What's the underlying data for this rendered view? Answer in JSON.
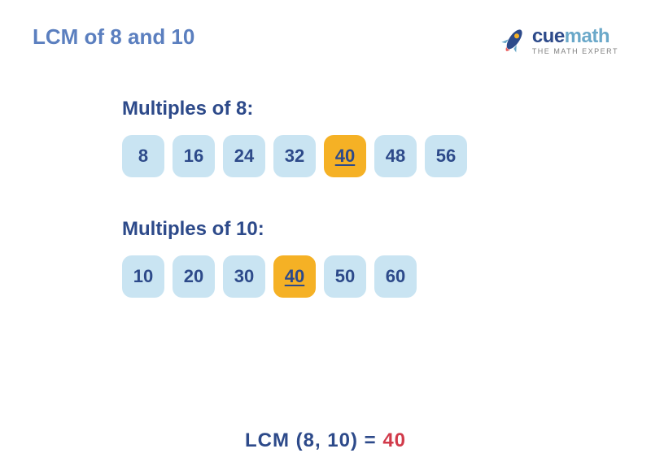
{
  "colors": {
    "title": "#5b7fbf",
    "heading": "#2d4a8a",
    "chip_bg": "#c9e4f2",
    "chip_text": "#2d4a8a",
    "chip_hl_bg": "#f5b125",
    "chip_hl_text": "#2d4a8a",
    "result_label": "#2d4a8a",
    "result_value": "#d13a4a",
    "logo_cue": "#2d4a8a",
    "logo_math": "#6aa8c9",
    "logo_sub": "#808080",
    "rocket_body": "#2d4a8a",
    "rocket_window": "#f5b125",
    "rocket_fin": "#6aa8c9",
    "rocket_flame": "#e85d5d"
  },
  "title": "LCM of 8 and 10",
  "logo": {
    "cue": "cue",
    "math": "math",
    "sub": "THE MATH EXPERT"
  },
  "section1": {
    "heading": "Multiples of 8:",
    "chips": [
      {
        "v": "8",
        "hl": false
      },
      {
        "v": "16",
        "hl": false
      },
      {
        "v": "24",
        "hl": false
      },
      {
        "v": "32",
        "hl": false
      },
      {
        "v": "40",
        "hl": true
      },
      {
        "v": "48",
        "hl": false
      },
      {
        "v": "56",
        "hl": false
      }
    ]
  },
  "section2": {
    "heading": "Multiples of 10:",
    "chips": [
      {
        "v": "10",
        "hl": false
      },
      {
        "v": "20",
        "hl": false
      },
      {
        "v": "30",
        "hl": false
      },
      {
        "v": "40",
        "hl": true
      },
      {
        "v": "50",
        "hl": false
      },
      {
        "v": "60",
        "hl": false
      }
    ]
  },
  "result": {
    "label": "LCM (8, 10) = ",
    "value": "40"
  }
}
